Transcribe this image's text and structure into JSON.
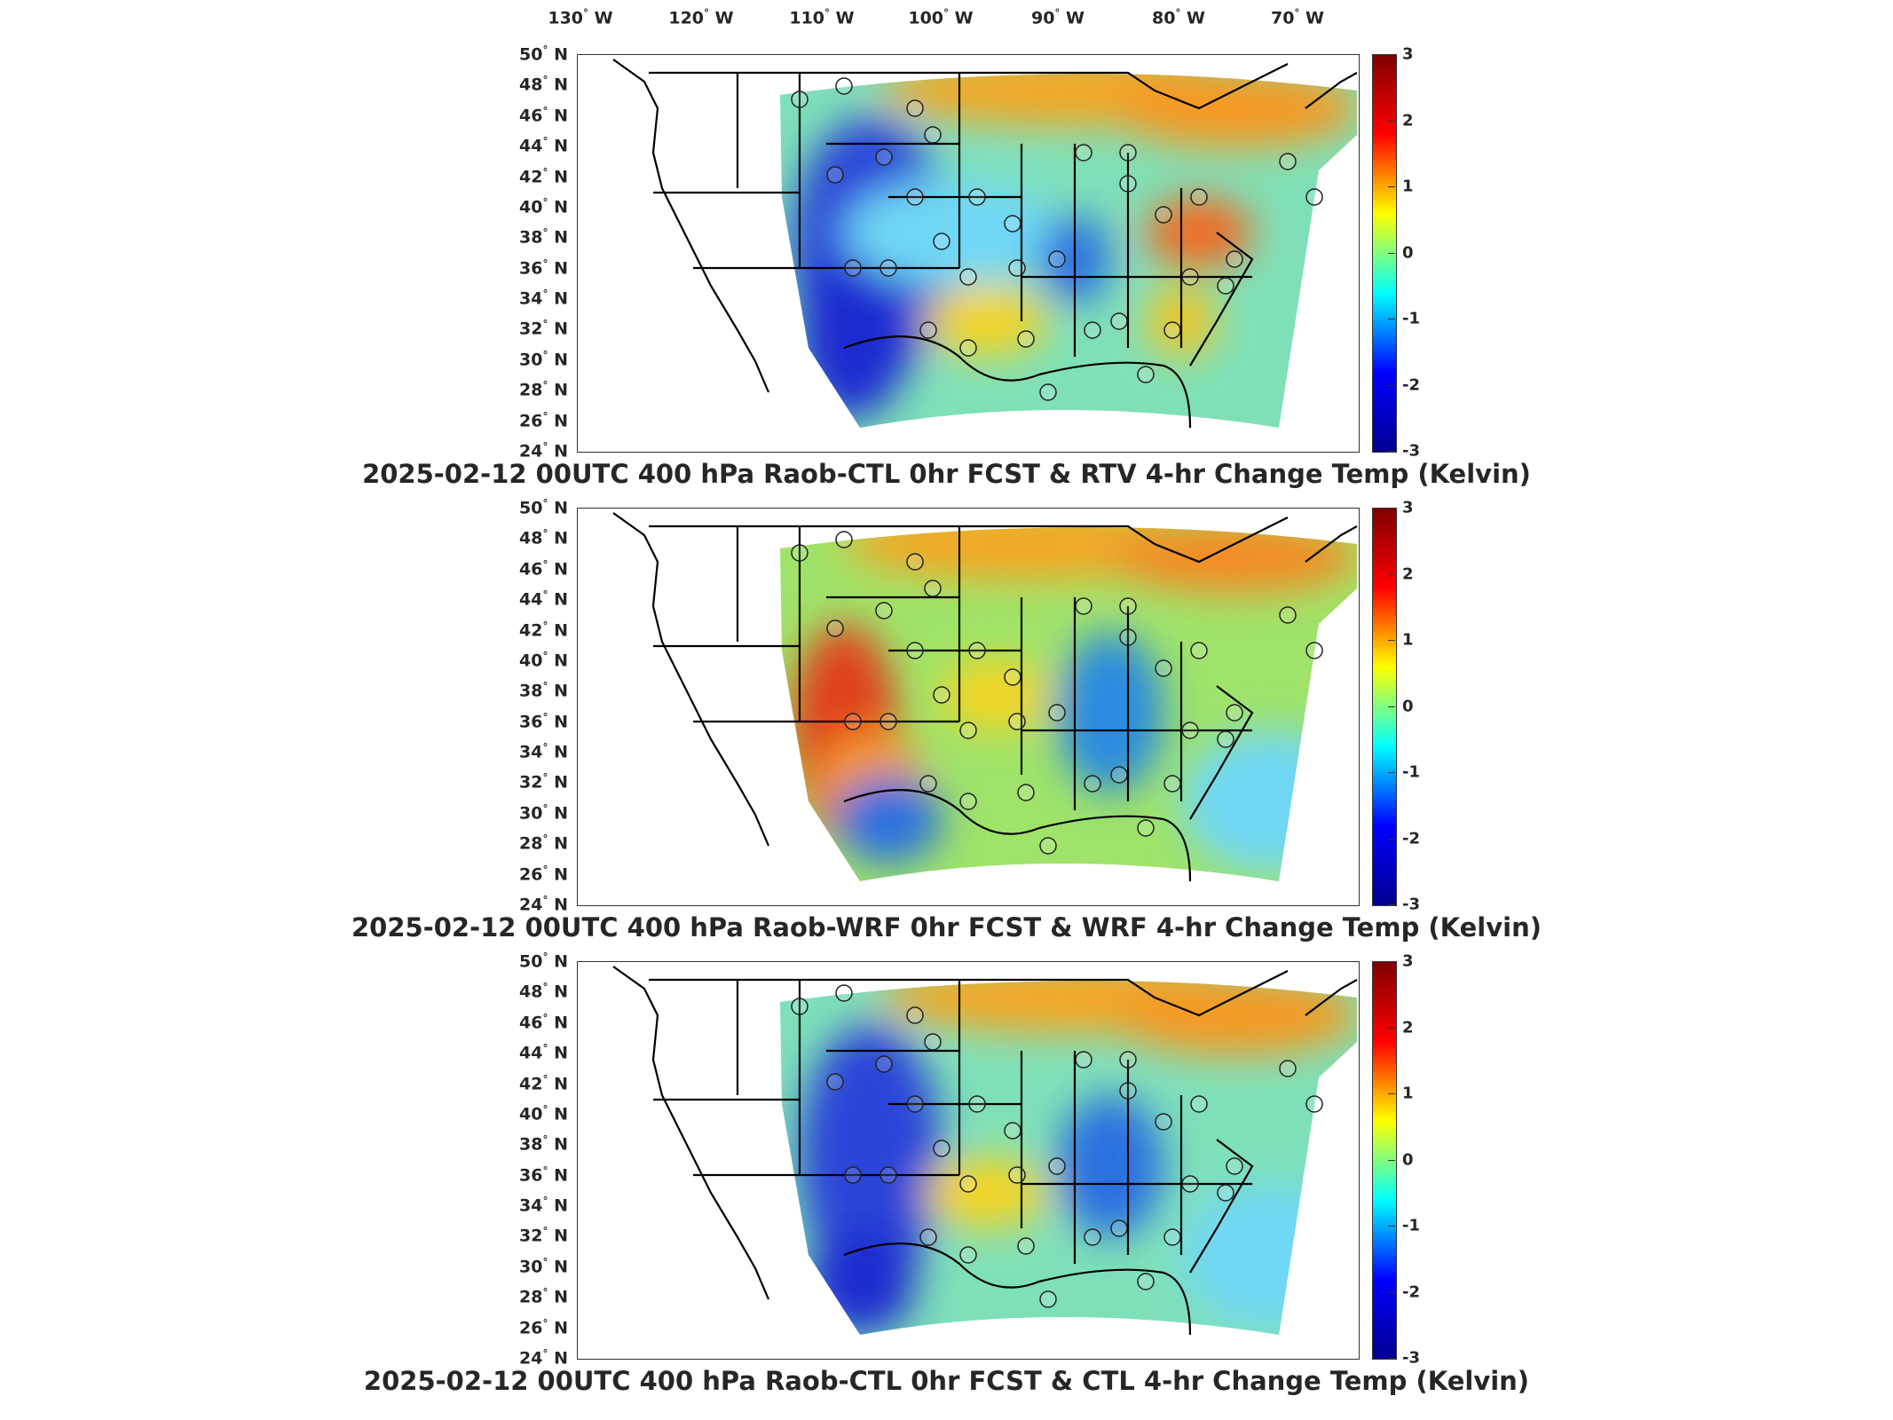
{
  "lon_labels": [
    "130",
    "120",
    "110",
    "100",
    "90",
    "80",
    "70"
  ],
  "lon_suffix": "W",
  "lat_labels": [
    "50",
    "48",
    "46",
    "44",
    "42",
    "40",
    "38",
    "36",
    "34",
    "32",
    "30",
    "28",
    "26",
    "24"
  ],
  "lat_suffix": "N",
  "colorbar": {
    "ticks": [
      "3",
      "2",
      "1",
      "0",
      "-1",
      "-2",
      "-3"
    ],
    "range": [
      -3,
      3
    ],
    "colormap": "jet",
    "colors": [
      "#00008f",
      "#0000ff",
      "#00ffff",
      "#ffff00",
      "#ff0000",
      "#800000"
    ]
  },
  "panels": [
    {
      "title": "2025-02-12 00UTC 400 hPa Raob-CTL 0hr FCST & RTV 4-hr Change Temp (Kelvin)"
    },
    {
      "title": "2025-02-12 00UTC 400 hPa Raob-WRF 0hr FCST & WRF 4-hr Change Temp (Kelvin)"
    },
    {
      "title": "2025-02-12 00UTC 400 hPa Raob-CTL 0hr FCST & CTL 4-hr Change Temp (Kelvin)"
    }
  ]
}
